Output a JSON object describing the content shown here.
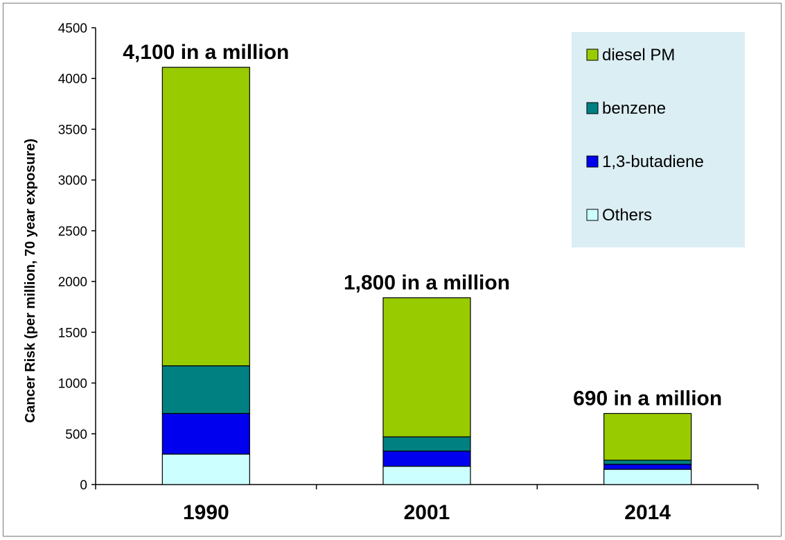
{
  "chart_data": {
    "type": "bar",
    "stacked": true,
    "title": "",
    "xlabel": "",
    "ylabel": "Cancer Risk (per million, 70 year exposure)",
    "ylim": [
      0,
      4500
    ],
    "yticks": [
      "0",
      "500",
      "1000",
      "1500",
      "2000",
      "2500",
      "3000",
      "3500",
      "4000",
      "4500"
    ],
    "categories": [
      "1990",
      "2001",
      "2014"
    ],
    "series": [
      {
        "name": "Others",
        "color": "#ccffff",
        "values": [
          300,
          180,
          150
        ]
      },
      {
        "name": "1,3-butadiene",
        "color": "#0000ee",
        "values": [
          400,
          150,
          50
        ]
      },
      {
        "name": "benzene",
        "color": "#008080",
        "values": [
          470,
          140,
          40
        ]
      },
      {
        "name": "diesel PM",
        "color": "#99cc00",
        "values": [
          2940,
          1370,
          460
        ]
      }
    ],
    "bar_labels": [
      "4,100 in a million",
      "1,800 in a million",
      "690 in a million"
    ],
    "legend_order": [
      "diesel PM",
      "benzene",
      "1,3-butadiene",
      "Others"
    ],
    "legend_position": "top-right",
    "legend_background": "#dbeef4",
    "grid": false
  }
}
